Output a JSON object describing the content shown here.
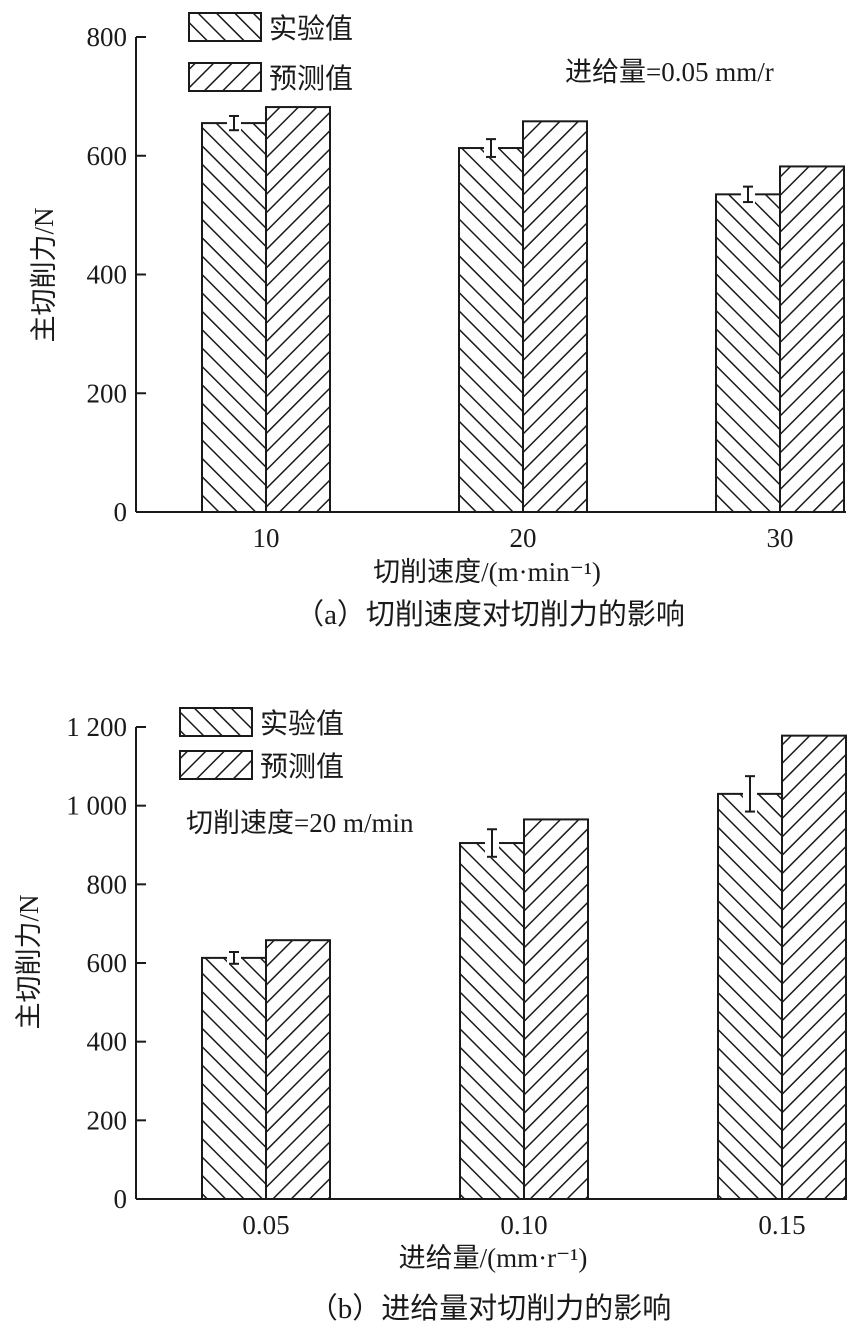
{
  "colors": {
    "ink": "#1a1a1a",
    "background": "#ffffff"
  },
  "chart_data": [
    {
      "type": "bar",
      "panel": "a",
      "caption": "（a）切削速度对切削力的影响",
      "annotation": "进给量=0.05 mm/r",
      "xlabel": "切削速度/(m·min⁻¹)",
      "ylabel": "主切削力/N",
      "ylim": [
        0,
        800
      ],
      "yticks": [
        0,
        200,
        400,
        600,
        800
      ],
      "ytick_labels": [
        "0",
        "200",
        "400",
        "600",
        "800"
      ],
      "categories": [
        "10",
        "20",
        "30"
      ],
      "legend_position": "top-left",
      "grid": false,
      "series": [
        {
          "name": "实验值",
          "hatch": "backslash",
          "values": [
            655,
            613,
            535
          ],
          "error": [
            12,
            15,
            13
          ]
        },
        {
          "name": "预测值",
          "hatch": "slash",
          "values": [
            682,
            658,
            582
          ]
        }
      ]
    },
    {
      "type": "bar",
      "panel": "b",
      "caption": "（b）进给量对切削力的影响",
      "annotation": "切削速度=20 m/min",
      "xlabel": "进给量/(mm·r⁻¹)",
      "ylabel": "主切削力/N",
      "ylim": [
        0,
        1200
      ],
      "yticks": [
        0,
        200,
        400,
        600,
        800,
        1000,
        1200
      ],
      "ytick_labels": [
        "0",
        "200",
        "400",
        "600",
        "800",
        "1 000",
        "1 200"
      ],
      "categories": [
        "0.05",
        "0.10",
        "0.15"
      ],
      "legend_position": "top-left",
      "grid": false,
      "series": [
        {
          "name": "实验值",
          "hatch": "backslash",
          "values": [
            613,
            905,
            1030
          ],
          "error": [
            15,
            35,
            45
          ]
        },
        {
          "name": "预测值",
          "hatch": "slash",
          "values": [
            658,
            965,
            1178
          ]
        }
      ]
    }
  ]
}
